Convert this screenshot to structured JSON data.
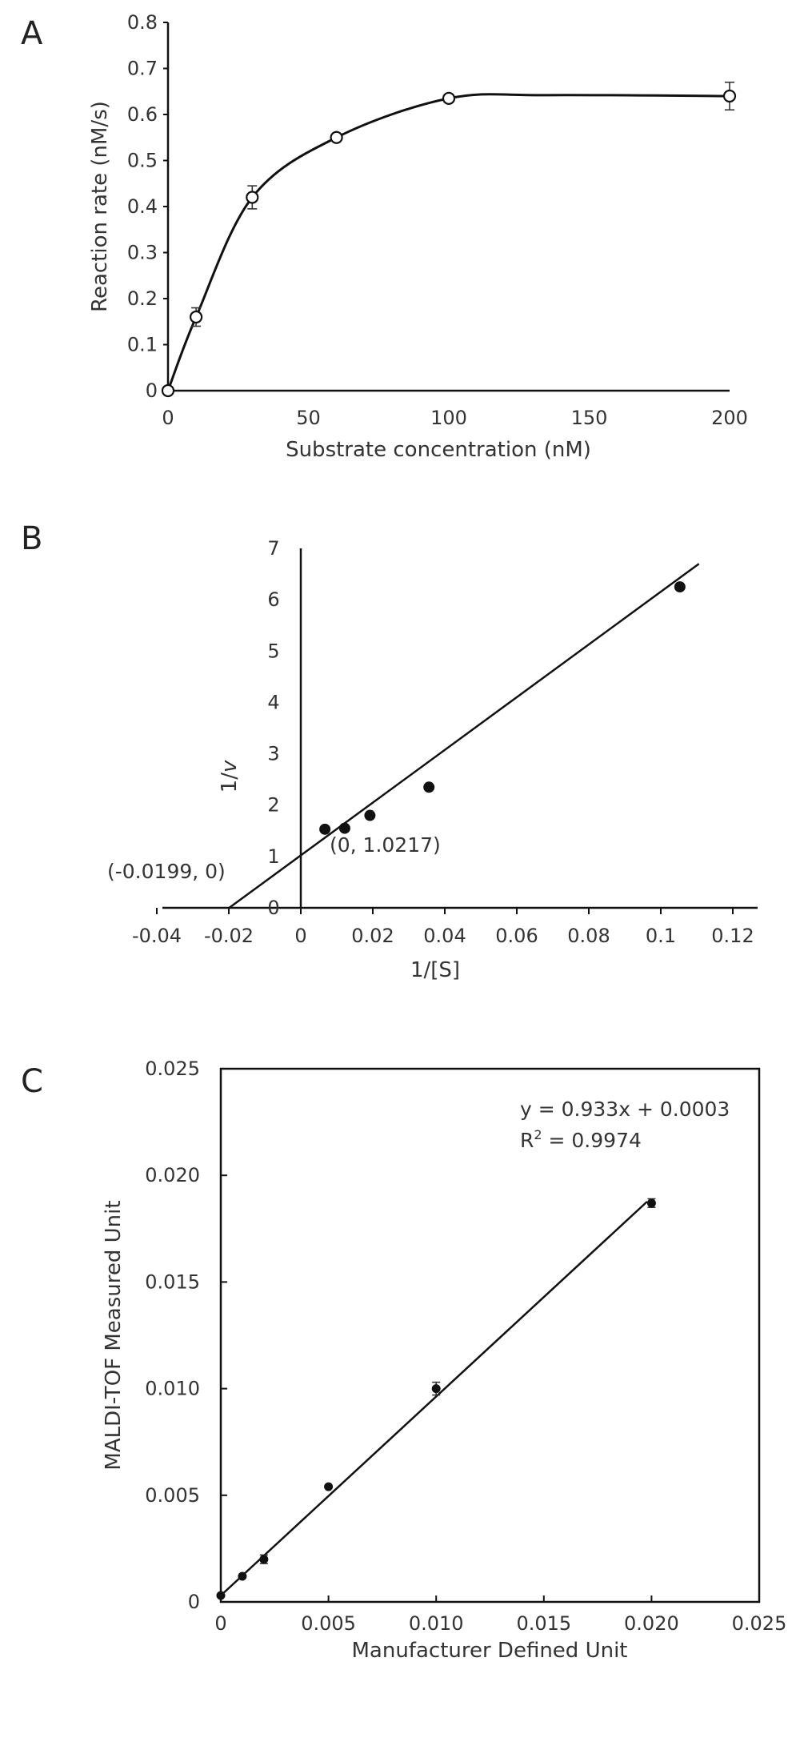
{
  "panels": {
    "a": "A",
    "b": "B",
    "c": "C"
  },
  "chart_data": [
    {
      "type": "line",
      "panel": "A",
      "title": "",
      "xlabel": "Substrate concentration (nM)",
      "ylabel": "Reaction rate (nM/s)",
      "xlim": [
        0,
        200
      ],
      "ylim": [
        0,
        0.8
      ],
      "xticks": [
        "0",
        "50",
        "100",
        "150",
        "200"
      ],
      "yticks": [
        "0",
        "0.1",
        "0.2",
        "0.3",
        "0.4",
        "0.5",
        "0.6",
        "0.7",
        "0.8"
      ],
      "x": [
        0,
        10,
        30,
        60,
        100,
        200
      ],
      "y": [
        0,
        0.16,
        0.42,
        0.55,
        0.635,
        0.64
      ],
      "yerr": [
        0,
        0.02,
        0.025,
        0.005,
        0.005,
        0.03
      ],
      "marker": "open-circle",
      "fit": "saturation curve"
    },
    {
      "type": "scatter",
      "panel": "B",
      "title": "",
      "xlabel": "1/[S]",
      "ylabel_prefix": "1/",
      "ylabel_italic": "v",
      "xlim": [
        -0.04,
        0.13
      ],
      "ylim": [
        0,
        7
      ],
      "xticks": [
        "-0.04",
        "-0.02",
        "0",
        "0.02",
        "0.04",
        "0.06",
        "0.08",
        "0.1",
        "0.12"
      ],
      "yticks": [
        "0",
        "1",
        "2",
        "3",
        "4",
        "5",
        "6",
        "7"
      ],
      "x": [
        0.0067,
        0.0122,
        0.0192,
        0.0356,
        0.1053
      ],
      "y": [
        1.53,
        1.55,
        1.8,
        2.35,
        6.25
      ],
      "marker": "filled-circle",
      "fit_line": {
        "slope": 51.34,
        "intercept": 1.0217
      },
      "annotations": {
        "x_intercept": "(-0.0199, 0)",
        "y_intercept": "(0, 1.0217)"
      }
    },
    {
      "type": "scatter",
      "panel": "C",
      "title": "",
      "xlabel": "Manufacturer Defined Unit",
      "ylabel": "MALDI-TOF Measured Unit",
      "xlim": [
        0,
        0.025
      ],
      "ylim": [
        0,
        0.025
      ],
      "xticks": [
        "0",
        "0.005",
        "0.010",
        "0.015",
        "0.020",
        "0.025"
      ],
      "yticks": [
        "0",
        "0.005",
        "0.010",
        "0.015",
        "0.020",
        "0.025"
      ],
      "x": [
        0,
        0.001,
        0.002,
        0.005,
        0.01,
        0.02
      ],
      "y": [
        0.0003,
        0.0012,
        0.002,
        0.0054,
        0.01,
        0.0187
      ],
      "yerr": [
        0,
        0,
        0.0002,
        0,
        0.0003,
        0.0002
      ],
      "marker": "filled-circle",
      "fit_line": {
        "slope": 0.933,
        "intercept": 0.0003
      },
      "equation": "y = 0.933x + 0.0003",
      "r2_prefix": "R",
      "r2_sup": "2",
      "r2_value": " = 0.9974"
    }
  ]
}
